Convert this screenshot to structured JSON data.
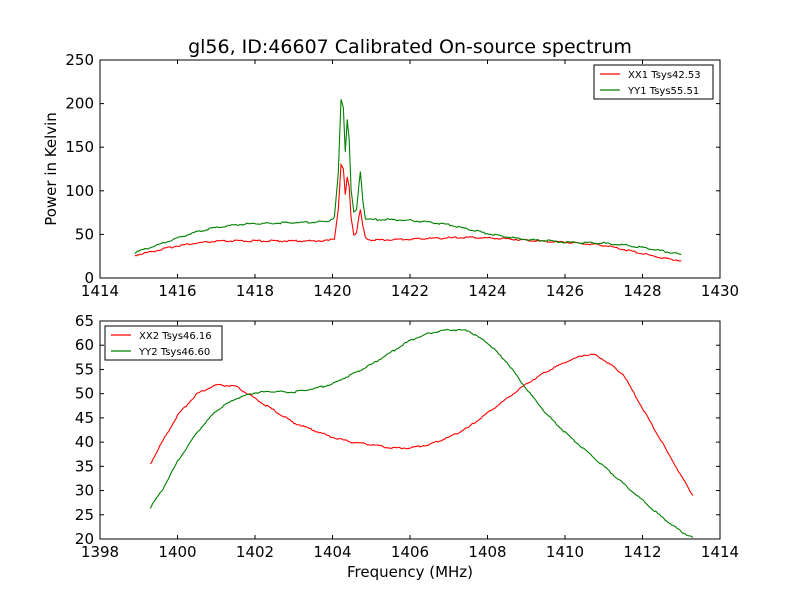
{
  "chart_data": [
    {
      "type": "line",
      "title": "gl56, ID:46607 Calibrated On-source spectrum",
      "xlabel": "",
      "ylabel": "Power in Kelvin",
      "xlim": [
        1414,
        1430
      ],
      "ylim": [
        0,
        250
      ],
      "xticks": [
        1414,
        1416,
        1418,
        1420,
        1422,
        1424,
        1426,
        1428,
        1430
      ],
      "yticks": [
        0,
        50,
        100,
        150,
        200,
        250
      ],
      "legend_position": "top-right",
      "series": [
        {
          "name": "XX1 Tsys42.53",
          "color": "#ff0000",
          "x": [
            1414.9,
            1415.5,
            1416.0,
            1416.5,
            1417.0,
            1417.5,
            1418.0,
            1418.5,
            1419.0,
            1419.5,
            1419.9,
            1420.05,
            1420.15,
            1420.22,
            1420.28,
            1420.33,
            1420.38,
            1420.43,
            1420.48,
            1420.55,
            1420.62,
            1420.68,
            1420.72,
            1420.78,
            1420.85,
            1421.0,
            1421.5,
            1422.0,
            1422.5,
            1423.0,
            1423.5,
            1424.0,
            1424.5,
            1425.0,
            1425.5,
            1426.0,
            1426.5,
            1427.0,
            1427.5,
            1428.0,
            1428.5,
            1429.0
          ],
          "values": [
            26,
            32,
            37,
            40,
            42,
            42.5,
            42.5,
            42.5,
            42.5,
            42.5,
            43,
            45,
            80,
            130,
            125,
            95,
            115,
            105,
            70,
            50,
            52,
            70,
            78,
            60,
            46,
            43.5,
            44,
            44.5,
            45.5,
            46,
            46.5,
            46,
            45,
            43.5,
            42,
            41,
            39.5,
            37.5,
            33,
            28,
            23,
            20
          ]
        },
        {
          "name": "YY1 Tsys55.51",
          "color": "#008000",
          "x": [
            1414.9,
            1415.5,
            1416.0,
            1416.5,
            1417.0,
            1417.5,
            1418.0,
            1418.5,
            1419.0,
            1419.5,
            1419.9,
            1420.05,
            1420.15,
            1420.22,
            1420.28,
            1420.33,
            1420.38,
            1420.43,
            1420.48,
            1420.55,
            1420.62,
            1420.68,
            1420.72,
            1420.78,
            1420.85,
            1421.0,
            1421.5,
            1422.0,
            1422.5,
            1423.0,
            1423.5,
            1424.0,
            1424.5,
            1425.0,
            1425.5,
            1426.0,
            1426.5,
            1427.0,
            1427.5,
            1428.0,
            1428.5,
            1429.0
          ],
          "values": [
            29,
            38,
            46,
            53,
            58,
            61,
            62.5,
            63,
            63.5,
            64,
            65,
            70,
            120,
            205,
            195,
            145,
            182,
            160,
            100,
            75,
            78,
            105,
            123,
            90,
            68,
            67,
            67,
            66,
            64,
            61,
            56,
            51,
            47,
            44,
            43,
            41,
            40.5,
            40,
            38,
            35,
            31,
            27
          ]
        }
      ]
    },
    {
      "type": "line",
      "title": "",
      "xlabel": "Frequency (MHz)",
      "ylabel": "",
      "xlim": [
        1398,
        1414
      ],
      "ylim": [
        20,
        65
      ],
      "xticks": [
        1398,
        1400,
        1402,
        1404,
        1406,
        1408,
        1410,
        1412,
        1414
      ],
      "yticks": [
        20,
        25,
        30,
        35,
        40,
        45,
        50,
        55,
        60,
        65
      ],
      "legend_position": "top-left",
      "series": [
        {
          "name": "XX2 Tsys46.16",
          "color": "#ff0000",
          "x": [
            1399.3,
            1399.6,
            1400.0,
            1400.5,
            1401.0,
            1401.5,
            1402.0,
            1402.5,
            1403.0,
            1403.5,
            1404.0,
            1404.5,
            1405.0,
            1405.5,
            1406.0,
            1406.5,
            1407.0,
            1407.5,
            1408.0,
            1408.5,
            1409.0,
            1409.5,
            1410.0,
            1410.5,
            1410.8,
            1411.0,
            1411.5,
            1412.0,
            1412.5,
            1413.0,
            1413.3
          ],
          "values": [
            35.5,
            40,
            45.5,
            50,
            51.8,
            51.5,
            49,
            46.5,
            44,
            42.5,
            41,
            40,
            39.5,
            38.8,
            38.8,
            39.5,
            41,
            43,
            46,
            49,
            52,
            54.5,
            56.5,
            58,
            58,
            57,
            54,
            47,
            40,
            33,
            29
          ]
        },
        {
          "name": "YY2 Tsys46.60",
          "color": "#008000",
          "x": [
            1399.3,
            1399.6,
            1400.0,
            1400.5,
            1401.0,
            1401.5,
            1402.0,
            1402.5,
            1403.0,
            1403.5,
            1404.0,
            1404.5,
            1405.0,
            1405.5,
            1406.0,
            1406.5,
            1407.0,
            1407.5,
            1408.0,
            1408.5,
            1409.0,
            1409.5,
            1410.0,
            1410.5,
            1411.0,
            1411.5,
            1412.0,
            1412.5,
            1413.0,
            1413.3
          ],
          "values": [
            26.5,
            30,
            36,
            42,
            46.5,
            49,
            50.2,
            50.5,
            50.3,
            51,
            52,
            54,
            56,
            58.5,
            61,
            62.5,
            63.2,
            63,
            60.5,
            56.5,
            51,
            46,
            42,
            38.5,
            35,
            31.5,
            28,
            24.5,
            21.5,
            20.3
          ]
        }
      ]
    }
  ]
}
